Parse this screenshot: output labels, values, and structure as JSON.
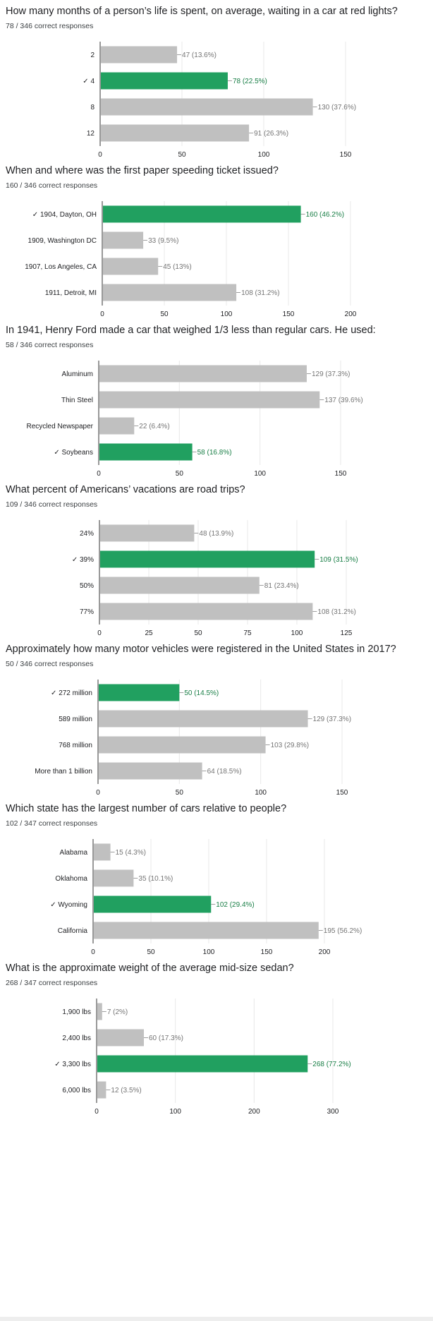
{
  "colors": {
    "correct": "#21a060",
    "other": "#c0c0c0",
    "grid": "#e8e8e8",
    "axis": "#333333",
    "correct_text": "#1a7f47",
    "other_text": "#757575"
  },
  "check_mark": "✓",
  "questions": [
    {
      "title": "How many months of a person’s life is spent, on average, waiting in a car at red lights?",
      "score": "78 / 346 correct responses",
      "chart_data": {
        "type": "bar",
        "orientation": "horizontal",
        "categories": [
          "2",
          "4",
          "8",
          "12"
        ],
        "values": [
          47,
          78,
          130,
          91
        ],
        "value_labels": [
          "47 (13.6%)",
          "78 (22.5%)",
          "130 (37.6%)",
          "91 (26.3%)"
        ],
        "correct_index": 1,
        "xlim": [
          0,
          150
        ],
        "xticks": [
          0,
          50,
          100,
          150
        ],
        "grid": true
      }
    },
    {
      "title": "When and where was the first paper speeding ticket issued?",
      "score": "160 / 346 correct responses",
      "chart_data": {
        "type": "bar",
        "orientation": "horizontal",
        "categories": [
          "1904, Dayton, OH",
          "1909, Washington DC",
          "1907, Los Angeles, CA",
          "1911, Detroit, MI"
        ],
        "values": [
          160,
          33,
          45,
          108
        ],
        "value_labels": [
          "160 (46.2%)",
          "33 (9.5%)",
          "45 (13%)",
          "108 (31.2%)"
        ],
        "correct_index": 0,
        "xlim": [
          0,
          200
        ],
        "xticks": [
          0,
          50,
          100,
          150,
          200
        ],
        "grid": true
      }
    },
    {
      "title": "In 1941, Henry Ford made a car that weighed 1/3 less than regular cars. He used:",
      "score": "58 / 346 correct responses",
      "chart_data": {
        "type": "bar",
        "orientation": "horizontal",
        "categories": [
          "Aluminum",
          "Thin Steel",
          "Recycled Newspaper",
          "Soybeans"
        ],
        "values": [
          129,
          137,
          22,
          58
        ],
        "value_labels": [
          "129 (37.3%)",
          "137 (39.6%)",
          "22 (6.4%)",
          "58 (16.8%)"
        ],
        "correct_index": 3,
        "xlim": [
          0,
          150
        ],
        "xticks": [
          0,
          50,
          100,
          150
        ],
        "grid": true
      }
    },
    {
      "title": "What percent of Americans’ vacations are road trips?",
      "score": "109 / 346 correct responses",
      "chart_data": {
        "type": "bar",
        "orientation": "horizontal",
        "categories": [
          "24%",
          "39%",
          "50%",
          "77%"
        ],
        "values": [
          48,
          109,
          81,
          108
        ],
        "value_labels": [
          "48 (13.9%)",
          "109 (31.5%)",
          "81 (23.4%)",
          "108 (31.2%)"
        ],
        "correct_index": 1,
        "xlim": [
          0,
          125
        ],
        "xticks": [
          0,
          25,
          50,
          75,
          100,
          125
        ],
        "grid": true
      }
    },
    {
      "title": "Approximately how many motor vehicles were registered in the United States in 2017?",
      "score": "50 / 346 correct responses",
      "chart_data": {
        "type": "bar",
        "orientation": "horizontal",
        "categories": [
          "272 million",
          "589 million",
          "768 million",
          "More than 1 billion"
        ],
        "values": [
          50,
          129,
          103,
          64
        ],
        "value_labels": [
          "50 (14.5%)",
          "129 (37.3%)",
          "103 (29.8%)",
          "64 (18.5%)"
        ],
        "correct_index": 0,
        "xlim": [
          0,
          150
        ],
        "xticks": [
          0,
          50,
          100,
          150
        ],
        "grid": true
      }
    },
    {
      "title": "Which state has the largest number of cars relative to people?",
      "score": "102 / 347 correct responses",
      "chart_data": {
        "type": "bar",
        "orientation": "horizontal",
        "categories": [
          "Alabama",
          "Oklahoma",
          "Wyoming",
          "California"
        ],
        "values": [
          15,
          35,
          102,
          195
        ],
        "value_labels": [
          "15 (4.3%)",
          "35 (10.1%)",
          "102 (29.4%)",
          "195 (56.2%)"
        ],
        "correct_index": 2,
        "xlim": [
          0,
          200
        ],
        "xticks": [
          0,
          50,
          100,
          150,
          200
        ],
        "grid": true
      }
    },
    {
      "title": "What is the approximate weight of the average mid-size sedan?",
      "score": "268 / 347 correct responses",
      "chart_data": {
        "type": "bar",
        "orientation": "horizontal",
        "categories": [
          "1,900 lbs",
          "2,400 lbs",
          "3,300 lbs",
          "6,000 lbs"
        ],
        "values": [
          7,
          60,
          268,
          12
        ],
        "value_labels": [
          "7 (2%)",
          "60 (17.3%)",
          "268 (77.2%)",
          "12 (3.5%)"
        ],
        "correct_index": 2,
        "xlim": [
          0,
          300
        ],
        "xticks": [
          0,
          100,
          200,
          300
        ],
        "grid": true
      }
    }
  ]
}
